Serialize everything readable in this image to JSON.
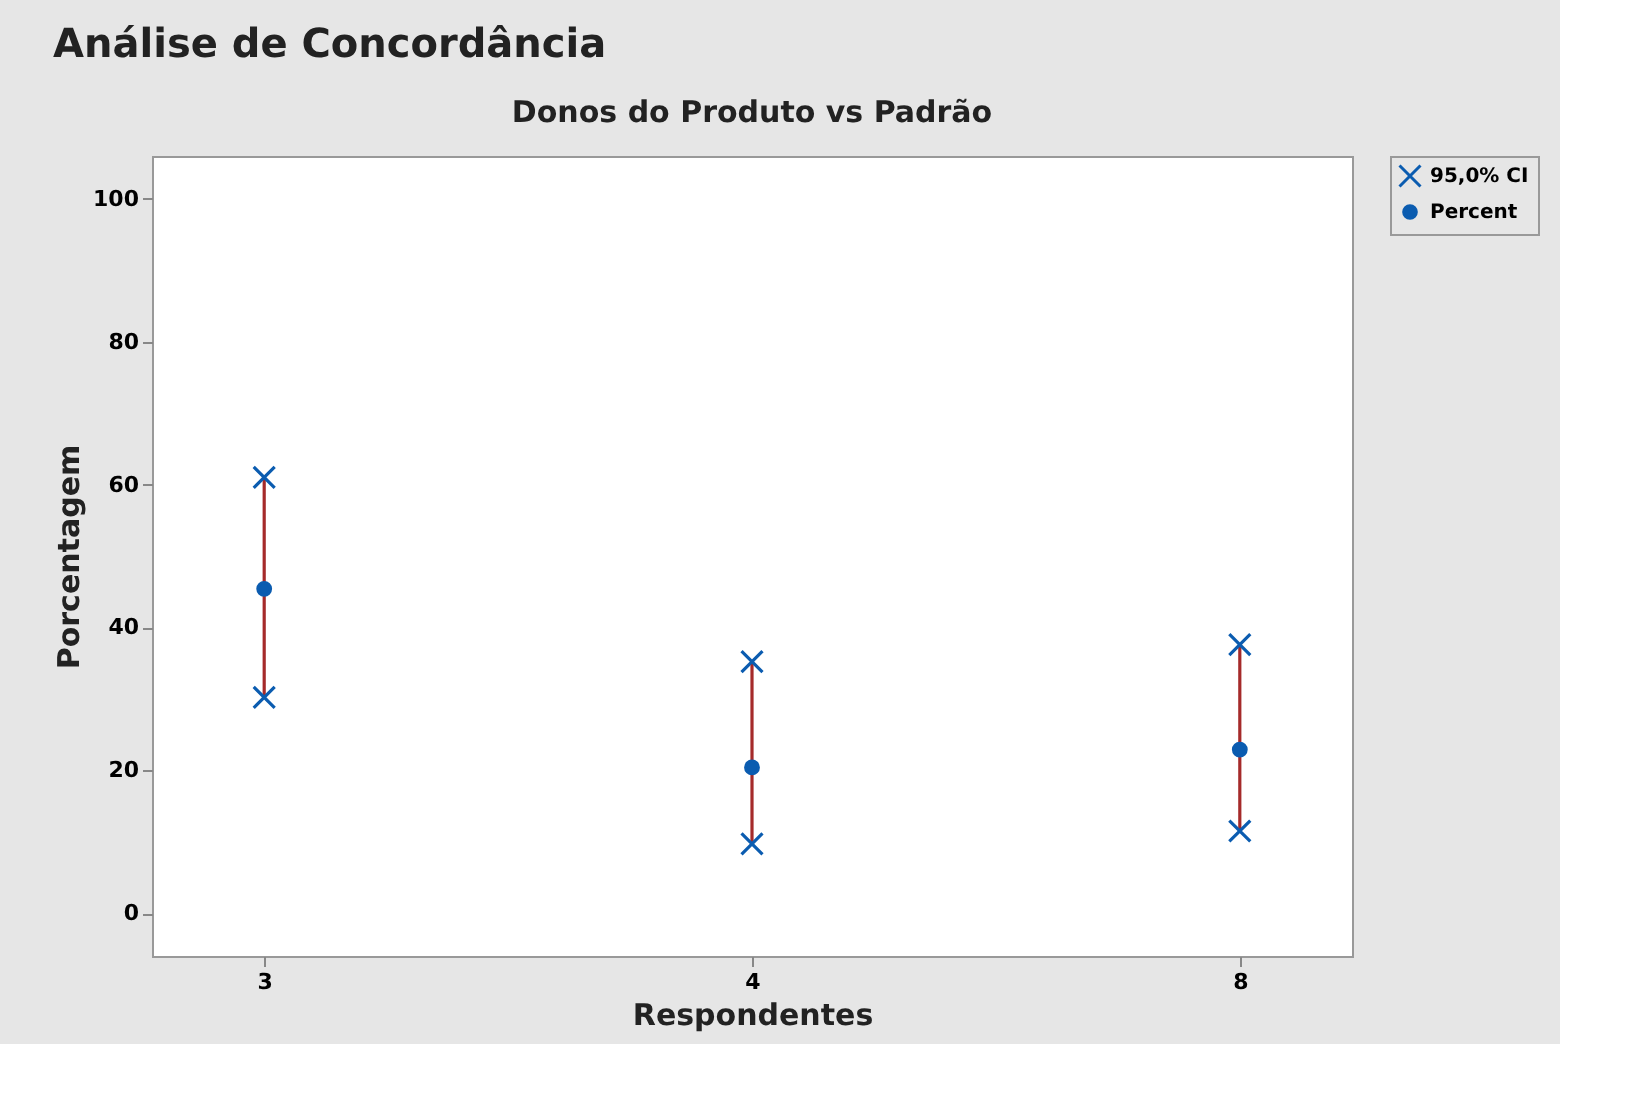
{
  "chart_data": {
    "type": "scatter",
    "title": "Análise de Concordância",
    "subtitle": "Donos do Produto vs Padrão",
    "xlabel": "Respondentes",
    "ylabel": "Porcentagem",
    "categories": [
      "3",
      "4",
      "8"
    ],
    "series": [
      {
        "name": "95,0% CI",
        "marker": "cross",
        "color": "#0b5cb0",
        "x": [
          "3",
          "3",
          "4",
          "4",
          "8",
          "8"
        ],
        "values": [
          61.0,
          30.2,
          35.2,
          9.7,
          37.6,
          11.5
        ]
      },
      {
        "name": "Percent",
        "marker": "circle",
        "color": "#0b5cb0",
        "values": [
          45.4,
          20.4,
          22.9
        ],
        "errors": [
          [
            30.2,
            61.0
          ],
          [
            9.7,
            35.2
          ],
          [
            11.5,
            37.6
          ]
        ]
      }
    ],
    "ylim": [
      -6,
      106
    ],
    "yticks": [
      0,
      20,
      40,
      60,
      80,
      100
    ],
    "grid": false,
    "legend": "top right"
  }
}
